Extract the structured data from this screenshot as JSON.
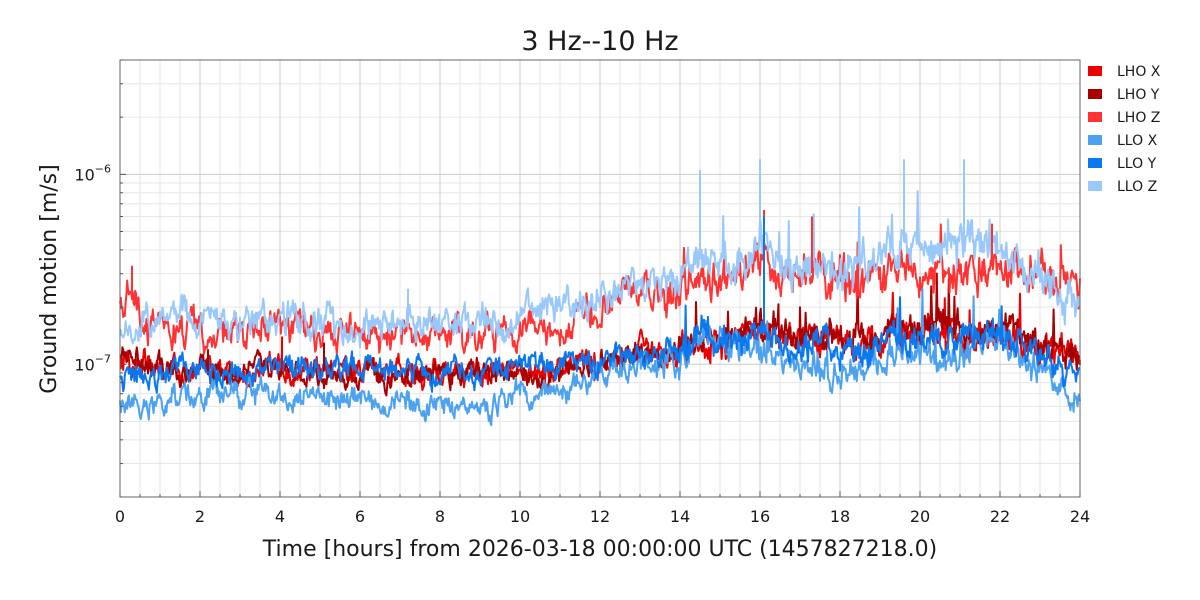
{
  "chart_data": {
    "type": "line",
    "title": "3 Hz--10 Hz",
    "xlabel": "Time [hours] from 2026-03-18 00:00:00 UTC (1457827218.0)",
    "ylabel": "Ground motion [m/s]",
    "xlim": [
      0,
      24
    ],
    "ylim": [
      2e-08,
      4e-06
    ],
    "yscale": "log",
    "grid": true,
    "legend_position": "outside-top-right",
    "x_ticks": [
      "0",
      "2",
      "4",
      "6",
      "8",
      "10",
      "12",
      "14",
      "16",
      "18",
      "20",
      "22",
      "24"
    ],
    "y_ticks": [
      {
        "value": 1e-07,
        "mantissa": "10",
        "exponent": "−7"
      },
      {
        "value": 1e-06,
        "mantissa": "10",
        "exponent": "−6"
      }
    ],
    "series": [
      {
        "name": "LHO X",
        "color": "#ee0000",
        "x": [
          0,
          0.25,
          0.5,
          1,
          1.5,
          2,
          3,
          4,
          5,
          6,
          7,
          8,
          9,
          10,
          11,
          12,
          12.5,
          13,
          13.5,
          14,
          14.5,
          15,
          15.5,
          16,
          16.5,
          17,
          17.5,
          18,
          18.5,
          19,
          19.5,
          20,
          20.5,
          21,
          21.5,
          22,
          22.5,
          23,
          23.5,
          24
        ],
        "y": [
          1e-07,
          1.1e-07,
          1e-07,
          9.5e-08,
          9.3e-08,
          9.3e-08,
          9.2e-08,
          9.4e-08,
          9.3e-08,
          9e-08,
          9.1e-08,
          9e-08,
          9e-08,
          9e-08,
          9.3e-08,
          1e-07,
          1.1e-07,
          1.2e-07,
          1.15e-07,
          1.2e-07,
          1.3e-07,
          1.3e-07,
          1.4e-07,
          1.5e-07,
          1.4e-07,
          1.3e-07,
          1.4e-07,
          1.3e-07,
          1.3e-07,
          1.4e-07,
          1.5e-07,
          1.4e-07,
          1.5e-07,
          1.4e-07,
          1.3e-07,
          1.4e-07,
          1.3e-07,
          1.2e-07,
          1.15e-07,
          1.1e-07
        ]
      },
      {
        "name": "LHO Y",
        "color": "#a80000",
        "x": [
          0,
          0.25,
          0.5,
          1,
          1.5,
          2,
          3,
          4,
          5,
          6,
          7,
          8,
          9,
          10,
          11,
          12,
          12.5,
          13,
          13.5,
          14,
          14.5,
          15,
          15.5,
          16,
          16.5,
          17,
          17.5,
          18,
          18.5,
          19,
          19.5,
          20,
          20.5,
          21,
          21.5,
          22,
          22.5,
          23,
          23.5,
          24
        ],
        "y": [
          1.1e-07,
          1.2e-07,
          1.05e-07,
          9.5e-08,
          9.2e-08,
          9.2e-08,
          9e-08,
          9.5e-08,
          9.2e-08,
          8.8e-08,
          8.9e-08,
          8.9e-08,
          8.8e-08,
          8.9e-08,
          9.2e-08,
          1e-07,
          1.1e-07,
          1.2e-07,
          1.1e-07,
          1.2e-07,
          1.3e-07,
          1.3e-07,
          1.4e-07,
          1.6e-07,
          1.4e-07,
          1.3e-07,
          1.5e-07,
          1.4e-07,
          1.3e-07,
          1.4e-07,
          1.6e-07,
          1.5e-07,
          1.6e-07,
          1.5e-07,
          1.4e-07,
          1.5e-07,
          1.4e-07,
          1.3e-07,
          1.2e-07,
          1.05e-07
        ]
      },
      {
        "name": "LHO Z",
        "color": "#ff3333",
        "x": [
          0,
          0.25,
          0.5,
          1,
          1.5,
          2,
          3,
          4,
          5,
          6,
          7,
          8,
          9,
          10,
          11,
          12,
          12.5,
          13,
          13.5,
          14,
          14.5,
          15,
          15.5,
          16,
          16.5,
          17,
          17.5,
          18,
          18.5,
          19,
          19.5,
          20,
          20.5,
          21,
          21.5,
          22,
          22.5,
          23,
          23.5,
          24
        ],
        "y": [
          2e-07,
          2.6e-07,
          1.7e-07,
          1.5e-07,
          1.5e-07,
          1.5e-07,
          1.5e-07,
          1.6e-07,
          1.5e-07,
          1.45e-07,
          1.4e-07,
          1.4e-07,
          1.4e-07,
          1.5e-07,
          1.6e-07,
          2e-07,
          2.4e-07,
          2.5e-07,
          2.3e-07,
          2.6e-07,
          3e-07,
          2.7e-07,
          3e-07,
          3.5e-07,
          2.8e-07,
          2.9e-07,
          3.1e-07,
          2.8e-07,
          2.9e-07,
          2.8e-07,
          3.5e-07,
          3e-07,
          3.2e-07,
          2.9e-07,
          3e-07,
          3.5e-07,
          2.9e-07,
          2.7e-07,
          2.6e-07,
          2.4e-07
        ]
      },
      {
        "name": "LLO X",
        "color": "#4da2f0",
        "x": [
          0,
          0.25,
          0.5,
          1,
          1.5,
          2,
          3,
          4,
          5,
          6,
          7,
          8,
          9,
          10,
          11,
          12,
          12.5,
          13,
          13.5,
          14,
          14.5,
          15,
          15.5,
          16,
          16.5,
          17,
          17.5,
          18,
          18.5,
          19,
          19.5,
          20,
          20.5,
          21,
          21.5,
          22,
          22.5,
          23,
          23.5,
          24
        ],
        "y": [
          6e-08,
          6.2e-08,
          5.8e-08,
          6.2e-08,
          6.8e-08,
          7e-08,
          7e-08,
          7.2e-08,
          6.5e-08,
          6.3e-08,
          6e-08,
          6.2e-08,
          6e-08,
          6.8e-08,
          7.5e-08,
          8.5e-08,
          9e-08,
          9.5e-08,
          1e-07,
          1.1e-07,
          1.5e-07,
          1.3e-07,
          1.2e-07,
          1.3e-07,
          1.1e-07,
          9.5e-08,
          1e-07,
          8.5e-08,
          9e-08,
          1e-07,
          1.1e-07,
          1.2e-07,
          1e-07,
          1.1e-07,
          1.2e-07,
          1.3e-07,
          1.1e-07,
          9e-08,
          7.5e-08,
          6e-08
        ]
      },
      {
        "name": "LLO Y",
        "color": "#0a78ee",
        "x": [
          0,
          0.25,
          0.5,
          1,
          1.5,
          2,
          3,
          4,
          5,
          6,
          7,
          8,
          9,
          10,
          11,
          12,
          12.5,
          13,
          13.5,
          14,
          14.5,
          15,
          15.5,
          16,
          16.5,
          17,
          17.5,
          18,
          18.5,
          19,
          19.5,
          20,
          20.5,
          21,
          21.5,
          22,
          22.5,
          23,
          23.5,
          24
        ],
        "y": [
          8.5e-08,
          8.8e-08,
          8.5e-08,
          9e-08,
          9.2e-08,
          9.2e-08,
          9.3e-08,
          9.3e-08,
          9.2e-08,
          9.2e-08,
          9.3e-08,
          9.2e-08,
          9.3e-08,
          9.6e-08,
          1e-07,
          1.05e-07,
          1.1e-07,
          1.1e-07,
          1.15e-07,
          1.2e-07,
          1.4e-07,
          1.3e-07,
          1.3e-07,
          1.5e-07,
          1.3e-07,
          1.2e-07,
          1.3e-07,
          1.2e-07,
          1.25e-07,
          1.3e-07,
          1.4e-07,
          1.4e-07,
          1.3e-07,
          1.4e-07,
          1.5e-07,
          1.5e-07,
          1.3e-07,
          1.1e-07,
          9.5e-08,
          9e-08
        ]
      },
      {
        "name": "LLO Z",
        "color": "#99c8fa",
        "x": [
          0,
          0.25,
          0.5,
          1,
          1.5,
          2,
          3,
          4,
          5,
          6,
          7,
          8,
          9,
          10,
          11,
          12,
          12.5,
          13,
          13.5,
          14,
          14.5,
          15,
          15.5,
          16,
          16.5,
          17,
          17.5,
          18,
          18.5,
          19,
          19.5,
          20,
          20.5,
          21,
          21.5,
          22,
          22.5,
          23,
          23.5,
          24
        ],
        "y": [
          1.4e-07,
          1.5e-07,
          1.6e-07,
          1.7e-07,
          1.75e-07,
          1.7e-07,
          1.7e-07,
          1.8e-07,
          1.65e-07,
          1.6e-07,
          1.55e-07,
          1.6e-07,
          1.6e-07,
          1.7e-07,
          2e-07,
          2.2e-07,
          2.4e-07,
          2.6e-07,
          2.5e-07,
          3e-07,
          4e-07,
          3.5e-07,
          3.5e-07,
          4.5e-07,
          3.5e-07,
          3e-07,
          3.5e-07,
          3.2e-07,
          3.3e-07,
          3.5e-07,
          4.5e-07,
          4e-07,
          3.8e-07,
          4.5e-07,
          4e-07,
          4.2e-07,
          3.5e-07,
          3e-07,
          2.5e-07,
          1.8e-07
        ]
      }
    ],
    "spikes": [
      {
        "series": "LHO X",
        "x": 4.05,
        "y": 1.4e-07
      },
      {
        "series": "LHO Y",
        "x": 2.2,
        "y": 1.2e-07
      },
      {
        "series": "LHO Y",
        "x": 5.1,
        "y": 1.3e-07
      },
      {
        "series": "LHO Z",
        "x": 0.3,
        "y": 3.3e-07
      },
      {
        "series": "LHO Z",
        "x": 16.1,
        "y": 6.5e-07
      },
      {
        "series": "LHO Z",
        "x": 17.3,
        "y": 6e-07
      },
      {
        "series": "LHO Z",
        "x": 21.8,
        "y": 5.5e-07
      },
      {
        "series": "LLO Y",
        "x": 16.1,
        "y": 6e-07
      },
      {
        "series": "LLO Z",
        "x": 7.2,
        "y": 2.5e-07
      },
      {
        "series": "LLO Z",
        "x": 14.5,
        "y": 1.05e-06
      },
      {
        "series": "LLO Z",
        "x": 16.0,
        "y": 1.2e-06
      },
      {
        "series": "LLO Z",
        "x": 19.6,
        "y": 1.2e-06
      },
      {
        "series": "LLO Z",
        "x": 21.1,
        "y": 1.2e-06
      }
    ]
  }
}
